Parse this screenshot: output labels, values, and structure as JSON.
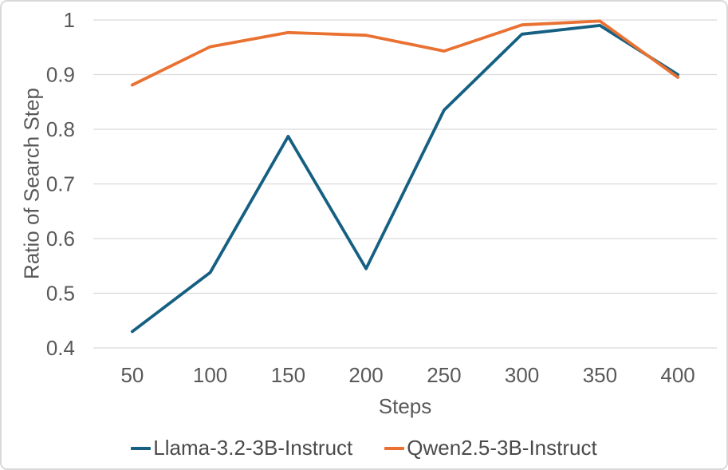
{
  "chart_data": {
    "type": "line",
    "title": "",
    "xlabel": "Steps",
    "ylabel": "Ratio of Search Step",
    "categories": [
      "50",
      "100",
      "150",
      "200",
      "250",
      "300",
      "350",
      "400"
    ],
    "series": [
      {
        "name": "Llama-3.2-3B-Instruct",
        "color": "#156082",
        "values": [
          0.43,
          0.538,
          0.787,
          0.545,
          0.835,
          0.974,
          0.99,
          0.9
        ]
      },
      {
        "name": "Qwen2.5-3B-Instruct",
        "color": "#E97132",
        "values": [
          0.881,
          0.951,
          0.977,
          0.972,
          0.943,
          0.991,
          0.998,
          0.895
        ]
      }
    ],
    "ylim": [
      0.4,
      1.0
    ],
    "y_ticks": [
      0.4,
      0.5,
      0.6,
      0.7,
      0.8,
      0.9,
      1.0
    ],
    "y_tick_labels": [
      "0.4",
      "0.5",
      "0.6",
      "0.7",
      "0.8",
      "0.9",
      "1"
    ],
    "grid": "horizontal",
    "legend_position": "bottom",
    "colors": {
      "gridline": "#D9D9D9",
      "axis_text": "#595959",
      "legend_text": "#4A4A4A",
      "frame_border": "#D9D9D9",
      "background": "#FFFFFF"
    }
  }
}
